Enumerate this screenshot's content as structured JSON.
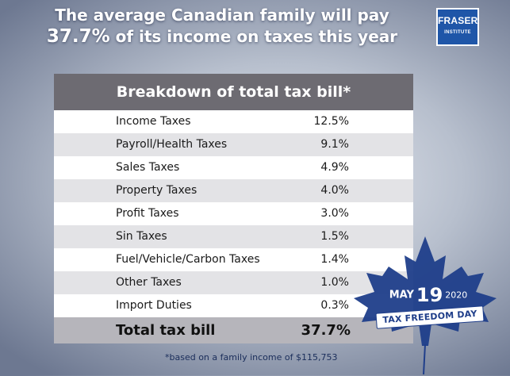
{
  "headline": {
    "line1": "The average Canadian family will pay",
    "percent": "37.7%",
    "line2_rest": " of its income on taxes this year"
  },
  "logo": {
    "name": "FRASER",
    "sub": "INSTITUTE",
    "color": "#1f56a8"
  },
  "table": {
    "title": "Breakdown of total tax bill*",
    "rows": [
      {
        "label": "Income Taxes",
        "value": "12.5%"
      },
      {
        "label": "Payroll/Health Taxes",
        "value": "9.1%"
      },
      {
        "label": "Sales Taxes",
        "value": "4.9%"
      },
      {
        "label": "Property Taxes",
        "value": "4.0%"
      },
      {
        "label": "Profit Taxes",
        "value": "3.0%"
      },
      {
        "label": "Sin Taxes",
        "value": "1.5%"
      },
      {
        "label": "Fuel/Vehicle/Carbon Taxes",
        "value": "1.4%"
      },
      {
        "label": "Other Taxes",
        "value": "1.0%"
      },
      {
        "label": "Import Duties",
        "value": "0.3%"
      }
    ],
    "total": {
      "label": "Total tax bill",
      "value": "37.7%"
    }
  },
  "footnote": "*based on a family income of $115,753",
  "badge": {
    "month": "MAY",
    "day": "19",
    "year": "2020",
    "banner": "TAX FREEDOM DAY",
    "leaf_color": "#1f3e8a",
    "leaf_icon": "maple-leaf-icon"
  }
}
